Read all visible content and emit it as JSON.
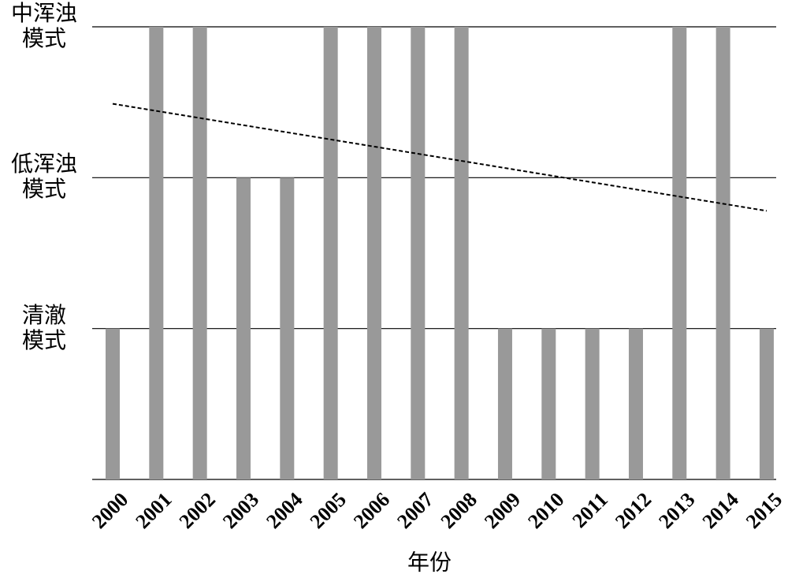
{
  "chart_data": {
    "type": "bar",
    "x_label": "年份",
    "categories": [
      "2000",
      "2001",
      "2002",
      "2003",
      "2004",
      "2005",
      "2006",
      "2007",
      "2008",
      "2009",
      "2010",
      "2011",
      "2012",
      "2013",
      "2014",
      "2015"
    ],
    "values": [
      1,
      3,
      3,
      2,
      2,
      3,
      3,
      3,
      3,
      1,
      1,
      1,
      1,
      3,
      3,
      1
    ],
    "color": "#999999",
    "ylim": [
      0,
      3
    ],
    "yticks": [
      {
        "value": 1,
        "label": "清澈\n模式"
      },
      {
        "value": 2,
        "label": "低浑浊\n模式"
      },
      {
        "value": 3,
        "label": "中浑浊\n模式"
      }
    ],
    "grid": true,
    "trend": {
      "values": [
        2.49,
        1.78
      ],
      "color": "#000000"
    }
  }
}
